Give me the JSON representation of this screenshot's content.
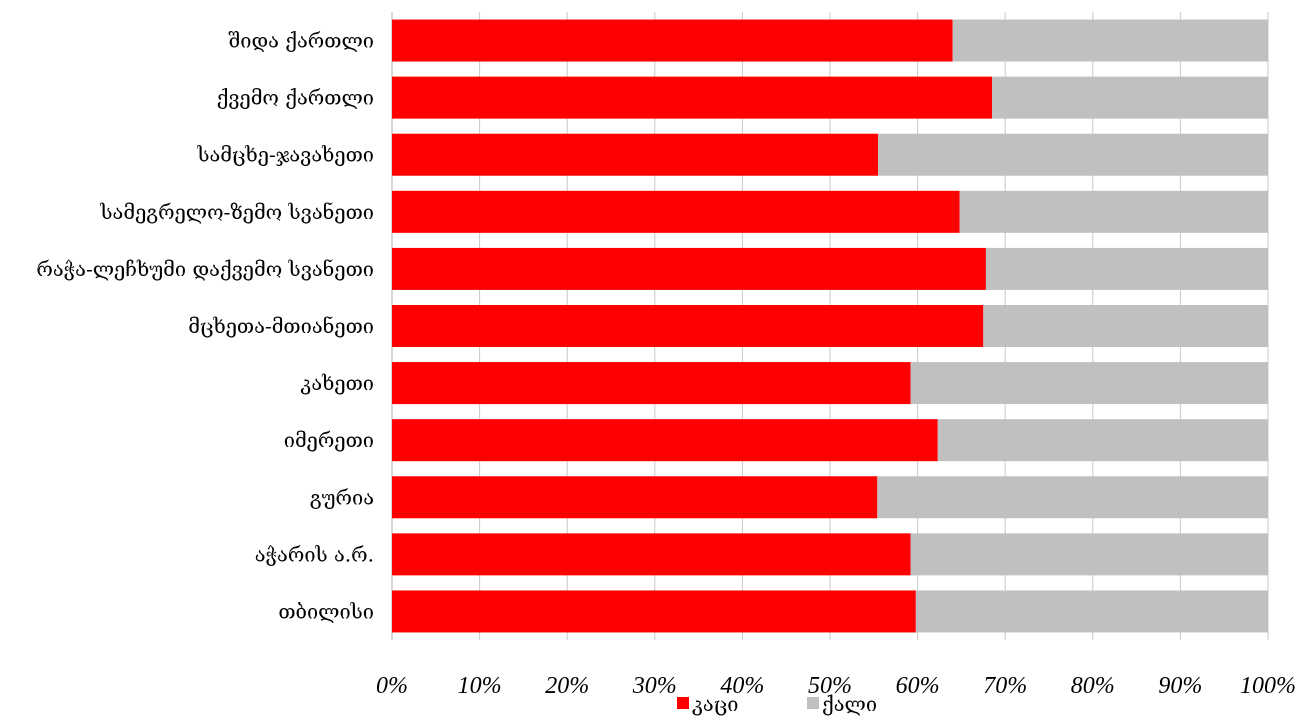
{
  "chart_data": {
    "type": "bar",
    "orientation": "horizontal",
    "stacked": "percent",
    "categories": [
      "შიდა ქართლი",
      "ქვემო ქართლი",
      "სამცხე-ჯავახეთი",
      "სამეგრელო-ზემო სვანეთი",
      "რაჭა-ლეჩხუმი დაქვემო სვანეთი",
      "მცხეთა-მთიანეთი",
      "კახეთი",
      "იმერეთი",
      "გურია",
      "აჭარის ა.რ.",
      "თბილისი"
    ],
    "series": [
      {
        "name": "კაცი",
        "color": "#ff0000",
        "values": [
          64,
          68.5,
          55.5,
          64.8,
          67.8,
          67.5,
          59.2,
          62.3,
          55.4,
          59.2,
          59.8
        ]
      },
      {
        "name": "ქალი",
        "color": "#c0c0c0",
        "values": [
          36,
          31.5,
          44.5,
          35.2,
          32.2,
          32.5,
          40.8,
          37.7,
          44.6,
          40.8,
          40.2
        ]
      }
    ],
    "xlim": [
      0,
      100
    ],
    "x_ticks": [
      "0%",
      "10%",
      "20%",
      "30%",
      "40%",
      "50%",
      "60%",
      "70%",
      "80%",
      "90%",
      "100%"
    ],
    "grid": true,
    "legend_position": "bottom"
  }
}
